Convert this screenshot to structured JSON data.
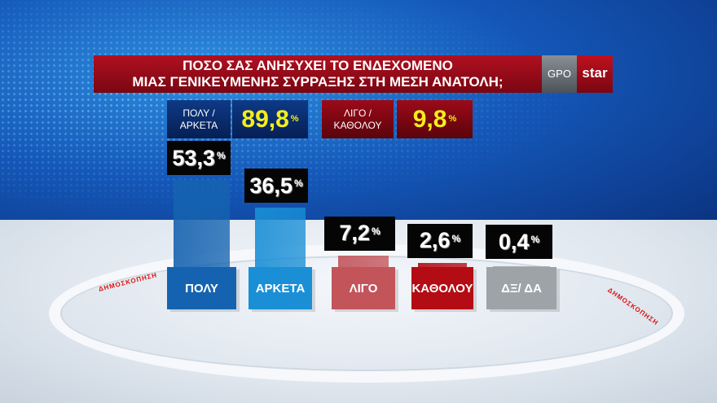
{
  "title_line1": "ΠΟΣΟ ΣΑΣ ΑΝΗΣΥΧΕΙ ΤΟ ΕΝΔΕΧΟΜΕΝΟ",
  "title_line2": "ΜΙΑΣ ΓΕΝΙΚΕΥΜΕΝΗΣ ΣΥΡΡΑΞΗΣ ΣΤΗ ΜΕΣΗ ΑΝΑΤΟΛΗ;",
  "logos": {
    "gpo": "GPO",
    "star": "star"
  },
  "watermark": "ΔΗΜΟΣΚΟΠΗΣΗ",
  "summary": [
    {
      "label1": "ΠΟΛΥ /",
      "label2": "ΑΡΚΕΤΑ",
      "value": "89,8",
      "unit": "%",
      "color": "#0e3a86"
    },
    {
      "label1": "ΛΙΓΟ /",
      "label2": "ΚΑΘΟΛΟΥ",
      "value": "9,8",
      "unit": "%",
      "color": "#9c0a18"
    }
  ],
  "chart_data": {
    "type": "bar",
    "categories": [
      "ΠΟΛΥ",
      "ΑΡΚΕΤΑ",
      "ΛΙΓΟ",
      "ΚΑΘΟΛΟΥ",
      "ΔΞ/ ΔΑ"
    ],
    "values": [
      53.3,
      36.5,
      7.2,
      2.6,
      0.4
    ],
    "value_labels": [
      "53,3",
      "36,5",
      "7,2",
      "2,6",
      "0,4"
    ],
    "unit": "%",
    "colors": [
      "#1563b0",
      "#1a8fd6",
      "#c2545a",
      "#b30c14",
      "#9ea3a8"
    ]
  }
}
